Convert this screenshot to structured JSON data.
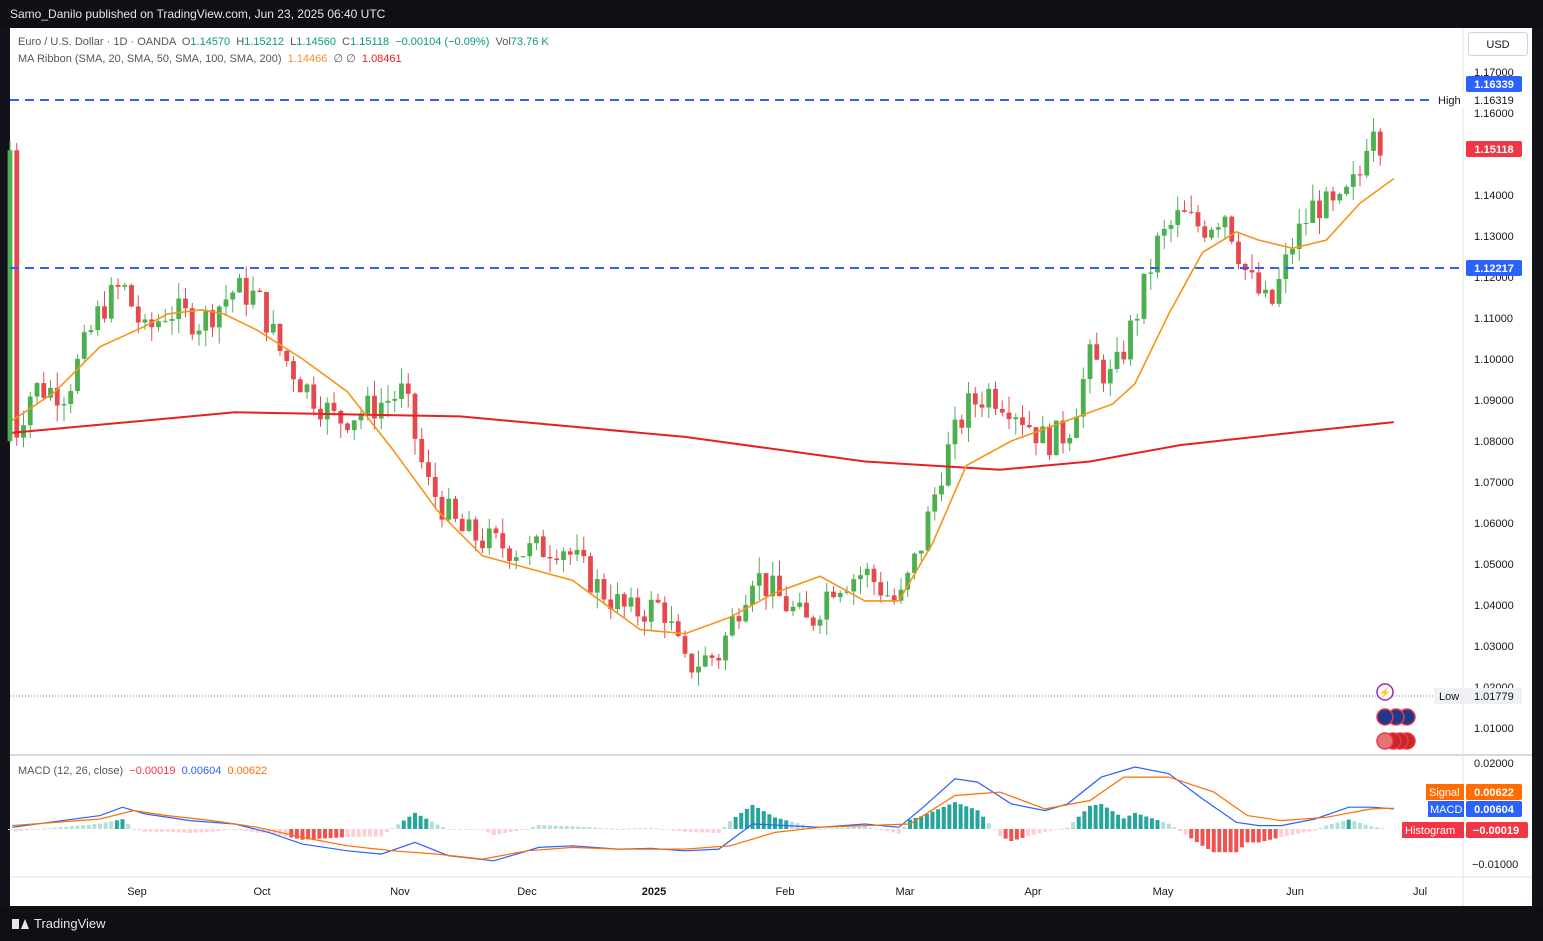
{
  "header": {
    "published": "Samo_Danilo published on TradingView.com, Jun 23, 2025 06:40 UTC"
  },
  "footer": {
    "brand": "TradingView"
  },
  "legend": {
    "symbol": "Euro / U.S. Dollar · 1D · OANDA",
    "o_label": "O",
    "o": "1.14570",
    "h_label": "H",
    "h": "1.15212",
    "l_label": "L",
    "l": "1.14560",
    "c_label": "C",
    "c": "1.15118",
    "change": "−0.00104 (−0.09%)",
    "vol_label": "Vol",
    "vol": "73.76 K",
    "ma_ribbon": "MA Ribbon (SMA, 20, SMA, 50, SMA, 100, SMA, 200)",
    "ma20": "1.14466",
    "ma_empty": "∅  ∅",
    "ma200": "1.08461",
    "macd_title": "MACD (12, 26, close)",
    "macd_hist": "−0.00019",
    "macd_line": "0.00604",
    "macd_signal": "0.00622"
  },
  "currency_button": "USD",
  "price_axis": {
    "ticks": [
      "1.17000",
      "1.16000",
      "1.14000",
      "1.13000",
      "1.12000",
      "1.11000",
      "1.10000",
      "1.09000",
      "1.08000",
      "1.07000",
      "1.06000",
      "1.05000",
      "1.04000",
      "1.03000",
      "1.02000",
      "1.01000"
    ],
    "tag_top": "1.16339",
    "tag_last": "1.15118",
    "tag_level": "1.12217",
    "high_label": "High",
    "high_value": "1.16319",
    "low_label": "Low",
    "low_value": "1.01779"
  },
  "macd_axis": {
    "ticks": [
      "0.02000",
      "−0.01000"
    ],
    "signal_label": "Signal",
    "signal_value": "0.00622",
    "macd_label": "MACD",
    "macd_value": "0.00604",
    "hist_label": "Histogram",
    "hist_value": "−0.00019"
  },
  "time_axis": {
    "labels": [
      "Sep",
      "Oct",
      "Nov",
      "Dec",
      "2025",
      "Feb",
      "Mar",
      "Apr",
      "May",
      "Jun",
      "Jul"
    ]
  },
  "colors": {
    "up": "#4caf50",
    "down": "#e5484d",
    "ma20": "#f7931a",
    "ma200": "#e82020",
    "level": "#2962ff",
    "macd": "#2962ff",
    "signal": "#ff6d00"
  },
  "chart_data": {
    "type": "candlestick",
    "symbol": "EURUSD",
    "timeframe": "1D",
    "x_labels": [
      "Sep",
      "Oct",
      "Nov",
      "Dec",
      "2025",
      "Feb",
      "Mar",
      "Apr",
      "May",
      "Jun",
      "Jul"
    ],
    "y_range": [
      1.005,
      1.172
    ],
    "horizontal_levels": [
      1.16339,
      1.12217
    ],
    "ma20_points": [
      [
        1,
        1.085
      ],
      [
        20,
        1.092
      ],
      [
        40,
        1.103
      ],
      [
        60,
        1.108
      ],
      [
        70,
        1.111
      ],
      [
        85,
        1.112
      ],
      [
        95,
        1.111
      ],
      [
        110,
        1.107
      ],
      [
        130,
        1.1
      ],
      [
        150,
        1.092
      ],
      [
        170,
        1.078
      ],
      [
        190,
        1.063
      ],
      [
        210,
        1.052
      ],
      [
        230,
        1.049
      ],
      [
        250,
        1.046
      ],
      [
        260,
        1.042
      ],
      [
        280,
        1.034
      ],
      [
        300,
        1.033
      ],
      [
        320,
        1.037
      ],
      [
        340,
        1.043
      ],
      [
        360,
        1.047
      ],
      [
        380,
        1.041
      ],
      [
        395,
        1.041
      ],
      [
        410,
        1.055
      ],
      [
        425,
        1.074
      ],
      [
        445,
        1.08
      ],
      [
        460,
        1.083
      ],
      [
        475,
        1.086
      ],
      [
        490,
        1.089
      ],
      [
        500,
        1.094
      ],
      [
        515,
        1.111
      ],
      [
        530,
        1.126
      ],
      [
        545,
        1.131
      ],
      [
        555,
        1.129
      ],
      [
        570,
        1.127
      ],
      [
        585,
        1.129
      ],
      [
        600,
        1.138
      ],
      [
        615,
        1.144
      ]
    ],
    "ma200_points": [
      [
        1,
        1.082
      ],
      [
        100,
        1.087
      ],
      [
        200,
        1.086
      ],
      [
        300,
        1.081
      ],
      [
        380,
        1.075
      ],
      [
        440,
        1.073
      ],
      [
        480,
        1.075
      ],
      [
        520,
        1.079
      ],
      [
        570,
        1.082
      ],
      [
        615,
        1.0846
      ]
    ],
    "low_value": 1.01779,
    "high_value": 1.16319,
    "last_close": 1.15118,
    "macd_range": [
      -0.012,
      0.021
    ]
  }
}
